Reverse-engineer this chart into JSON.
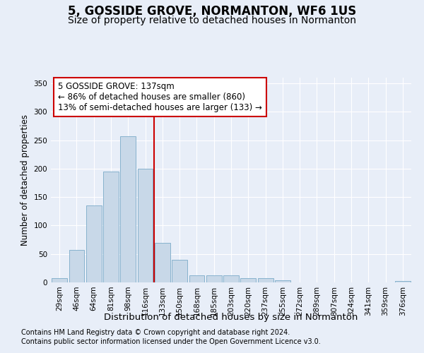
{
  "title": "5, GOSSIDE GROVE, NORMANTON, WF6 1US",
  "subtitle": "Size of property relative to detached houses in Normanton",
  "xlabel": "Distribution of detached houses by size in Normanton",
  "ylabel": "Number of detached properties",
  "categories": [
    "29sqm",
    "46sqm",
    "64sqm",
    "81sqm",
    "98sqm",
    "116sqm",
    "133sqm",
    "150sqm",
    "168sqm",
    "185sqm",
    "203sqm",
    "220sqm",
    "237sqm",
    "255sqm",
    "272sqm",
    "289sqm",
    "307sqm",
    "324sqm",
    "341sqm",
    "359sqm",
    "376sqm"
  ],
  "values": [
    8,
    57,
    135,
    195,
    257,
    200,
    70,
    40,
    12,
    12,
    13,
    7,
    8,
    4,
    0,
    0,
    0,
    0,
    0,
    0,
    3
  ],
  "bar_color": "#c8d8e8",
  "bar_edge_color": "#7aaac8",
  "highlight_bar_index": 6,
  "highlight_line_color": "#cc0000",
  "annotation_text": "5 GOSSIDE GROVE: 137sqm\n← 86% of detached houses are smaller (860)\n13% of semi-detached houses are larger (133) →",
  "annotation_box_color": "#ffffff",
  "annotation_box_edge_color": "#cc0000",
  "ylim": [
    0,
    360
  ],
  "yticks": [
    0,
    50,
    100,
    150,
    200,
    250,
    300,
    350
  ],
  "footnote1": "Contains HM Land Registry data © Crown copyright and database right 2024.",
  "footnote2": "Contains public sector information licensed under the Open Government Licence v3.0.",
  "background_color": "#e8eef8",
  "plot_background_color": "#e8eef8",
  "grid_color": "#ffffff",
  "title_fontsize": 12,
  "subtitle_fontsize": 10,
  "xlabel_fontsize": 9.5,
  "ylabel_fontsize": 8.5,
  "tick_fontsize": 7.5,
  "annotation_fontsize": 8.5,
  "footnote_fontsize": 7
}
